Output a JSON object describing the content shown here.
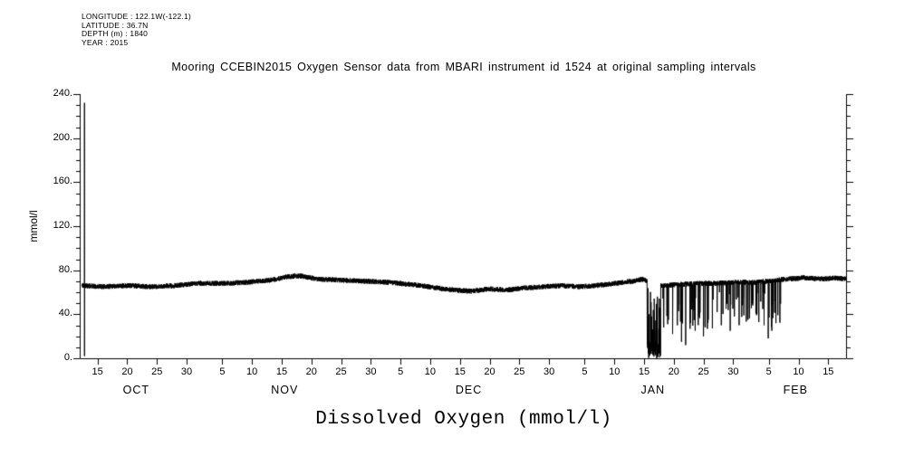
{
  "header": {
    "lines": [
      "LONGITUDE : 122.1W(-122.1)",
      "LATITUDE : 36.7N",
      "DEPTH (m) : 1840",
      "YEAR : 2015"
    ]
  },
  "chart_data": {
    "type": "line",
    "title": "Mooring CCEBIN2015 Oxygen Sensor data from MBARI instrument id 1524 at original sampling intervals",
    "xlabel": "Dissolved Oxygen (mmol/l)",
    "ylabel": "mmol/l",
    "units": "mmol/l",
    "line_color": "#000000",
    "background": "#ffffff",
    "grid": false,
    "legend": "none",
    "ylim": [
      0,
      240
    ],
    "y_tick_step": 40,
    "y_minor_step": 10,
    "y_ticks": [
      {
        "value": 0,
        "label": "0."
      },
      {
        "value": 40,
        "label": "40."
      },
      {
        "value": 80,
        "label": "80."
      },
      {
        "value": 120,
        "label": "120."
      },
      {
        "value": 160,
        "label": "160."
      },
      {
        "value": 200,
        "label": "200."
      },
      {
        "value": 240,
        "label": "240."
      }
    ],
    "x_range_days": [
      0,
      129
    ],
    "x_start_date": "2015-10-12",
    "x_end_date": "2016-02-18",
    "x_ticks": [
      {
        "day": 3,
        "label": "15"
      },
      {
        "day": 8,
        "label": "20"
      },
      {
        "day": 13,
        "label": "25"
      },
      {
        "day": 18,
        "label": "30"
      },
      {
        "day": 24,
        "label": "5"
      },
      {
        "day": 29,
        "label": "10"
      },
      {
        "day": 34,
        "label": "15"
      },
      {
        "day": 39,
        "label": "20"
      },
      {
        "day": 44,
        "label": "25"
      },
      {
        "day": 49,
        "label": "30"
      },
      {
        "day": 54,
        "label": "5"
      },
      {
        "day": 59,
        "label": "10"
      },
      {
        "day": 64,
        "label": "15"
      },
      {
        "day": 69,
        "label": "20"
      },
      {
        "day": 74,
        "label": "25"
      },
      {
        "day": 79,
        "label": "30"
      },
      {
        "day": 85,
        "label": "5"
      },
      {
        "day": 90,
        "label": "10"
      },
      {
        "day": 95,
        "label": "15"
      },
      {
        "day": 100,
        "label": "20"
      },
      {
        "day": 105,
        "label": "25"
      },
      {
        "day": 110,
        "label": "30"
      },
      {
        "day": 116,
        "label": "5"
      },
      {
        "day": 121,
        "label": "10"
      },
      {
        "day": 126,
        "label": "15"
      }
    ],
    "month_labels": [
      {
        "day": 9.5,
        "label": "OCT"
      },
      {
        "day": 34.5,
        "label": "NOV"
      },
      {
        "day": 65.5,
        "label": "DEC"
      },
      {
        "day": 96.5,
        "label": "JAN"
      },
      {
        "day": 120.5,
        "label": "FEB"
      }
    ],
    "series": [
      {
        "name": "dissolved_oxygen",
        "approx_mean": 67,
        "description": "Noisy trace ~60-75 mmol/l; startup spike to ~232 and ~2 near Oct 13; sensor dropout oscillating 0-60 Jan 15-18; frequent downward spikes to 10-50 from Jan 18 to ~Feb 7; cleaner ~70-73 through Feb 18"
      }
    ],
    "generator": {
      "dt_days": 0.02,
      "start_offset_days": 0.4,
      "noise_amp": 2.3,
      "seed": 20151012,
      "baseline_anchors": [
        [
          0.4,
          66
        ],
        [
          4,
          65
        ],
        [
          8,
          66
        ],
        [
          12,
          65
        ],
        [
          16,
          66
        ],
        [
          20,
          68
        ],
        [
          24,
          68
        ],
        [
          28,
          69
        ],
        [
          32,
          71
        ],
        [
          35,
          74
        ],
        [
          37,
          75
        ],
        [
          40,
          72
        ],
        [
          44,
          71
        ],
        [
          48,
          70
        ],
        [
          52,
          69
        ],
        [
          56,
          67
        ],
        [
          60,
          64
        ],
        [
          63,
          62
        ],
        [
          66,
          61
        ],
        [
          69,
          63
        ],
        [
          72,
          62
        ],
        [
          75,
          64
        ],
        [
          78,
          65
        ],
        [
          81,
          66
        ],
        [
          84,
          65
        ],
        [
          87,
          66
        ],
        [
          90,
          68
        ],
        [
          93,
          70
        ],
        [
          95,
          72
        ],
        [
          95.5,
          70
        ],
        [
          98,
          66
        ],
        [
          101,
          67
        ],
        [
          104,
          68
        ],
        [
          107,
          68
        ],
        [
          110,
          69
        ],
        [
          113,
          69
        ],
        [
          116,
          70
        ],
        [
          119,
          72
        ],
        [
          122,
          73
        ],
        [
          125,
          72
        ],
        [
          127,
          73
        ],
        [
          129,
          72
        ]
      ],
      "events": {
        "start_spike": {
          "day": 0.8,
          "top": 232,
          "bottom": 2
        },
        "dropout": {
          "start": 95.5,
          "end": 97.8,
          "low": 0,
          "high": 65
        },
        "noisy_period": {
          "start": 97.8,
          "end": 118,
          "spike_prob": 0.07,
          "spike_depth_min": 8,
          "spike_depth_max": 42
        },
        "deep_spikes": [
          [
            98.3,
            28
          ],
          [
            99.1,
            35
          ],
          [
            99.8,
            22
          ],
          [
            100.6,
            30
          ],
          [
            101.3,
            15
          ],
          [
            102.0,
            12
          ],
          [
            102.8,
            32
          ],
          [
            103.6,
            25
          ],
          [
            104.3,
            38
          ],
          [
            105.0,
            20
          ],
          [
            105.8,
            35
          ],
          [
            106.5,
            28
          ],
          [
            107.3,
            42
          ],
          [
            108.0,
            30
          ],
          [
            108.8,
            45
          ],
          [
            109.5,
            25
          ],
          [
            110.2,
            38
          ],
          [
            111.0,
            30
          ],
          [
            111.8,
            45
          ],
          [
            112.5,
            35
          ],
          [
            113.3,
            48
          ],
          [
            114.0,
            40
          ],
          [
            115.2,
            30
          ],
          [
            115.9,
            18
          ],
          [
            116.5,
            25
          ],
          [
            117.2,
            45
          ]
        ]
      }
    }
  }
}
